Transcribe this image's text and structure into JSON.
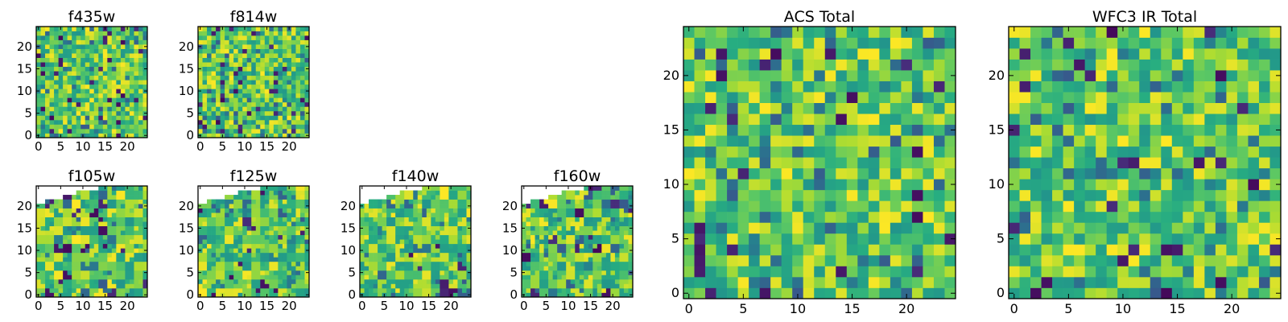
{
  "colormap": "viridis",
  "colors": {
    "cmap_low": "#440154",
    "cmap_mid": "#21918c",
    "cmap_high": "#fde725",
    "axes_edge": "#000000",
    "background": "#ffffff"
  },
  "chart_data": [
    {
      "type": "heatmap",
      "title": "f435w",
      "grid_size": 25,
      "xlim": [
        -0.5,
        24.5
      ],
      "ylim": [
        -0.5,
        24.5
      ],
      "xticks": [
        0,
        5,
        10,
        15,
        20
      ],
      "yticks": [
        0,
        5,
        10,
        15,
        20
      ],
      "pattern": "pixel noise",
      "seed": 11
    },
    {
      "type": "heatmap",
      "title": "f814w",
      "grid_size": 25,
      "xlim": [
        -0.5,
        24.5
      ],
      "ylim": [
        -0.5,
        24.5
      ],
      "xticks": [
        0,
        5,
        10,
        15,
        20
      ],
      "yticks": [
        0,
        5,
        10,
        15,
        20
      ],
      "pattern": "pixel noise",
      "seed": 23
    },
    {
      "type": "heatmap",
      "title": "f105w",
      "grid_size": 25,
      "xlim": [
        -0.5,
        24.5
      ],
      "ylim": [
        -0.5,
        24.5
      ],
      "xticks": [
        0,
        5,
        10,
        15,
        20
      ],
      "yticks": [
        0,
        5,
        10,
        15,
        20
      ],
      "pattern": "blocky resampled, blank upper-left corner",
      "seed": 37
    },
    {
      "type": "heatmap",
      "title": "f125w",
      "grid_size": 25,
      "xlim": [
        -0.5,
        24.5
      ],
      "ylim": [
        -0.5,
        24.5
      ],
      "xticks": [
        0,
        5,
        10,
        15,
        20
      ],
      "yticks": [
        0,
        5,
        10,
        15,
        20
      ],
      "pattern": "blocky resampled, blank upper-left corner",
      "seed": 41
    },
    {
      "type": "heatmap",
      "title": "f140w",
      "grid_size": 25,
      "xlim": [
        -0.5,
        24.5
      ],
      "ylim": [
        -0.5,
        24.5
      ],
      "xticks": [
        0,
        5,
        10,
        15,
        20
      ],
      "yticks": [
        0,
        5,
        10,
        15,
        20
      ],
      "pattern": "blocky resampled, blank upper-left corner",
      "seed": 53
    },
    {
      "type": "heatmap",
      "title": "f160w",
      "grid_size": 25,
      "xlim": [
        -0.5,
        24.5
      ],
      "ylim": [
        -0.5,
        24.5
      ],
      "xticks": [
        0,
        5,
        10,
        15,
        20
      ],
      "yticks": [
        0,
        5,
        10,
        15,
        20
      ],
      "pattern": "blocky resampled, blank upper-left corner",
      "seed": 67
    },
    {
      "type": "heatmap",
      "title": "ACS Total",
      "grid_size": 25,
      "xlim": [
        -0.5,
        24.5
      ],
      "ylim": [
        -0.5,
        24.5
      ],
      "xticks": [
        0,
        5,
        10,
        15,
        20
      ],
      "yticks": [
        0,
        5,
        10,
        15,
        20
      ],
      "pattern": "pixel noise",
      "seed": 79
    },
    {
      "type": "heatmap",
      "title": "WFC3 IR Total",
      "grid_size": 25,
      "xlim": [
        -0.5,
        24.5
      ],
      "ylim": [
        -0.5,
        24.5
      ],
      "xticks": [
        0,
        5,
        10,
        15,
        20
      ],
      "yticks": [
        0,
        5,
        10,
        15,
        20
      ],
      "pattern": "pixel noise",
      "seed": 97
    }
  ]
}
